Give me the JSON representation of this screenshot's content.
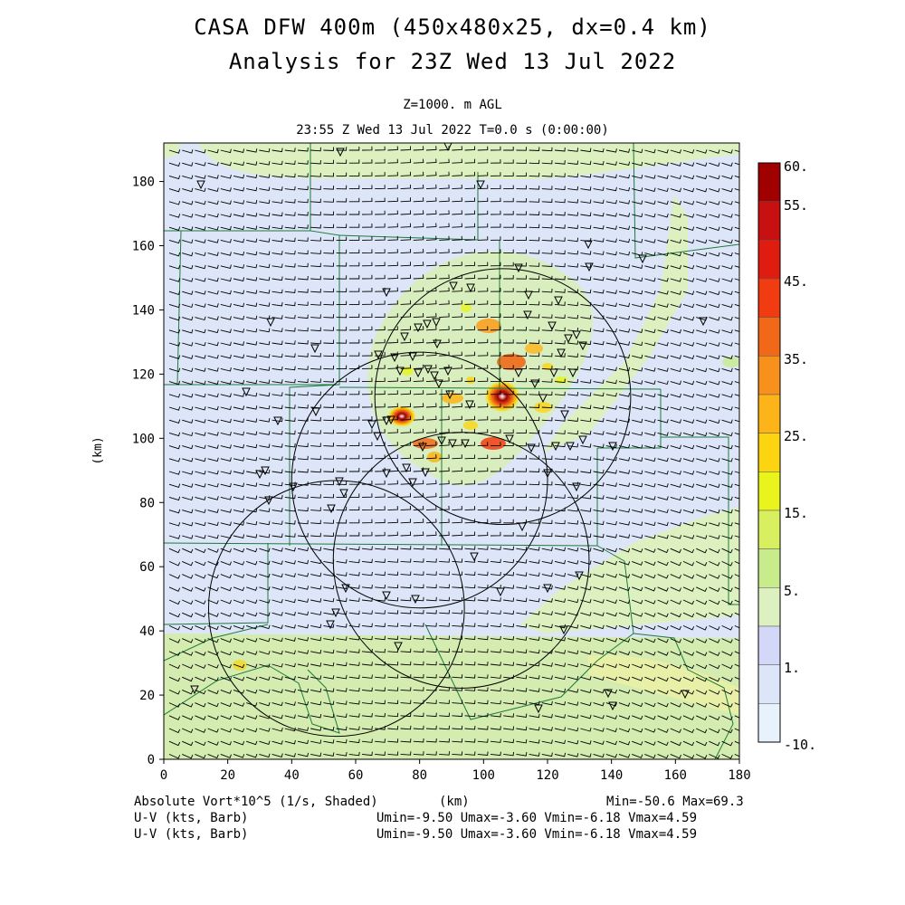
{
  "title_line1": "CASA DFW 400m (450x480x25, dx=0.4 km)",
  "title_line2": "Analysis for 23Z Wed 13 Jul 2022",
  "level_label": "Z=1000. m AGL",
  "time_label": "23:55 Z Wed 13 Jul 2022   T=0.0 s (0:00:00)",
  "x_axis": {
    "label": "(km)",
    "ticks": [
      "0",
      "20",
      "40",
      "60",
      "80",
      "100",
      "120",
      "140",
      "160",
      "180"
    ],
    "range": [
      0,
      180
    ]
  },
  "y_axis": {
    "label": "(km)",
    "ticks": [
      "0",
      "20",
      "40",
      "60",
      "80",
      "100",
      "120",
      "140",
      "160",
      "180"
    ],
    "range": [
      0,
      192
    ]
  },
  "colorbar": {
    "labels": [
      "60.",
      "55.",
      "45.",
      "35.",
      "25.",
      "15.",
      "5.",
      "1.",
      "-10."
    ],
    "colors": [
      "#a00000",
      "#c81010",
      "#e01c10",
      "#f03c10",
      "#f06818",
      "#f8901c",
      "#fcb418",
      "#fcd410",
      "#e8f41c",
      "#d8f060",
      "#c8ec8c",
      "#dcf0c0",
      "#d4d8f8",
      "#dce6f8",
      "#e8f2fc"
    ]
  },
  "footer": {
    "field_label": "Absolute Vort*10^5 (1/s, Shaded)",
    "units_label": "(km)",
    "minmax": "Min=-50.6 Max=69.3",
    "uv_label_1": "U-V (kts, Barb)",
    "uv_stats_1": "Umin=-9.50 Umax=-3.60 Vmin=-6.18 Vmax=4.59",
    "uv_label_2": "U-V (kts, Barb)",
    "uv_stats_2": "Umin=-9.50 Umax=-3.60 Vmin=-6.18 Vmax=4.59"
  },
  "radar_coverage_circles_km": [
    {
      "x": 106,
      "y": 113,
      "r": 40
    },
    {
      "x": 80,
      "y": 87,
      "r": 40
    },
    {
      "x": 93,
      "y": 62,
      "r": 40
    },
    {
      "x": 54,
      "y": 47,
      "r": 40
    }
  ],
  "vorticity_maxima_km": [
    {
      "x": 106,
      "y": 113,
      "value": 69.3
    },
    {
      "x": 74,
      "y": 107,
      "value": 55
    }
  ]
}
